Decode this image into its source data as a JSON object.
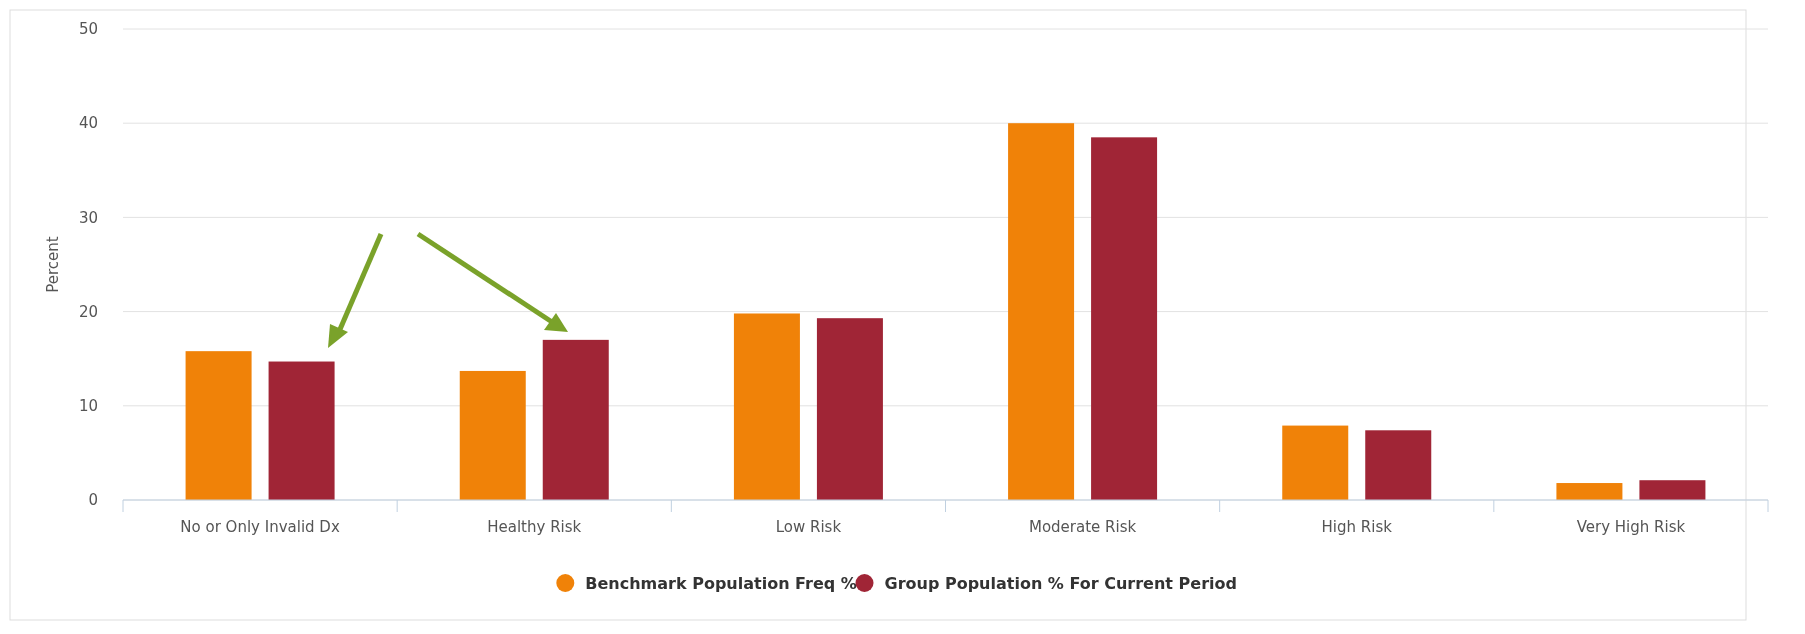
{
  "chart_data": {
    "type": "bar",
    "ylabel": "Percent",
    "categories": [
      "No or Only Invalid Dx",
      "Healthy Risk",
      "Low Risk",
      "Moderate Risk",
      "High Risk",
      "Very High Risk"
    ],
    "series": [
      {
        "name": "Benchmark Population Freq %",
        "color": "#f08208",
        "values": [
          15.8,
          13.7,
          19.8,
          40.0,
          7.9,
          1.8
        ]
      },
      {
        "name": "Group Population % For Current Period",
        "color": "#a02536",
        "values": [
          14.7,
          17.0,
          19.3,
          38.5,
          7.4,
          2.1
        ]
      }
    ],
    "ylim": [
      0,
      50
    ],
    "yticks": [
      0,
      10,
      20,
      30,
      40,
      50
    ],
    "grid": "y",
    "legend": "bottom"
  }
}
